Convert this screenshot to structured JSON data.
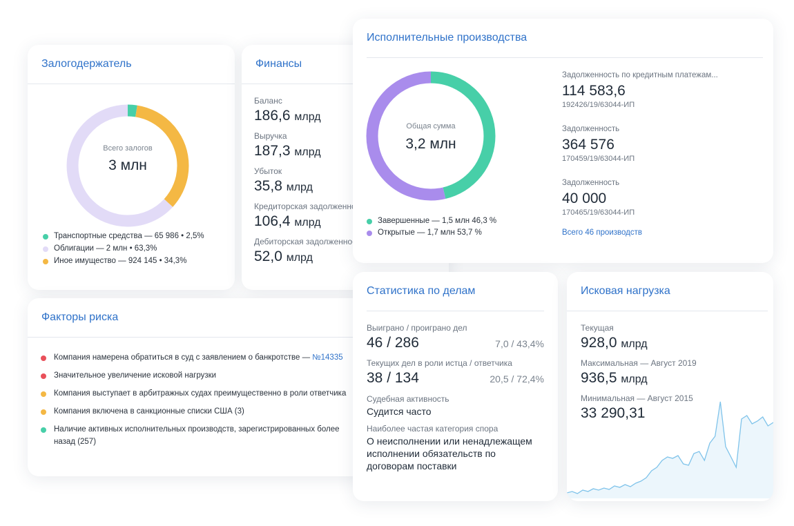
{
  "pledge": {
    "title": "Залогодержатель",
    "caption": "Всего залогов",
    "total": "3 млн",
    "segments": [
      {
        "label": "Транспортные средства — 65 986 • 2,5%",
        "value": 2.5,
        "color": "#47cfa8"
      },
      {
        "label": "Облигации —  2 млн • 63,3%",
        "value": 63.3,
        "color": "#e2dbf7"
      },
      {
        "label": "Иное имущество — 924 145 • 34,3%",
        "value": 34.3,
        "color": "#f4b844"
      }
    ]
  },
  "finance": {
    "title": "Финансы",
    "items": [
      {
        "label": "Баланс",
        "value": "186,6",
        "unit": "млрд"
      },
      {
        "label": "Выручка",
        "value": "187,3",
        "unit": "млрд"
      },
      {
        "label": "Убыток",
        "value": "35,8",
        "unit": "млрд"
      },
      {
        "label": "Кредиторская задолженность",
        "value": "106,4",
        "unit": "млрд"
      },
      {
        "label": "Дебиторская задолженность",
        "value": "52,0",
        "unit": "млрд"
      }
    ]
  },
  "risk": {
    "title": "Факторы риска",
    "items": [
      {
        "text": "Компания намерена обратиться в суд с заявлением о банкротстве — ",
        "link": "№14335",
        "color": "#e9505a"
      },
      {
        "text": "Значительное увеличение исковой нагрузки",
        "color": "#e9505a"
      },
      {
        "text": "Компания выступает в арбитражных судах преимущественно в роли ответчика",
        "color": "#f4b844"
      },
      {
        "text": "Компания включена в санкционные списки США (3)",
        "color": "#f4b844"
      },
      {
        "text": "Наличие активных исполнительных производств, зарегистрированных более",
        "text2": "назад (257)",
        "color": "#47cfa8"
      }
    ]
  },
  "enforcement": {
    "title": "Исполнительные производства",
    "caption": "Общая сумма",
    "total": "3,2 млн",
    "segments": [
      {
        "label": "Завершенные — 1,5 млн 46,3 %",
        "value": 46.3,
        "color": "#47cfa8"
      },
      {
        "label": "Открытые — 1,7 млн 53,7 %",
        "value": 53.7,
        "color": "#a98cec"
      }
    ],
    "items": [
      {
        "label": "Задолженность по кредитным платежам...",
        "value": "114 583,6",
        "case": "192426/19/63044-ИП"
      },
      {
        "label": "Задолженность",
        "value": "364 576",
        "case": "170459/19/63044-ИП"
      },
      {
        "label": "Задолженность",
        "value": "40 000",
        "case": "170465/19/63044-ИП"
      }
    ],
    "link": "Всего 46 производств"
  },
  "cases": {
    "title": "Статистика по делам",
    "rows": [
      {
        "label": "Выиграно / проиграно дел",
        "value": "46 / 286",
        "extra": "7,0 / 43,4%"
      },
      {
        "label": "Текущих дел в роли истца / ответчика",
        "value": "38 / 134",
        "extra": "20,5 / 72,4%"
      },
      {
        "label": "Судебная активность",
        "value": "Судится часто"
      },
      {
        "label": "Наиболее частая категория спора",
        "value": "О неисполнении или ненадлежащем исполнении обязательств по договорам поставки"
      }
    ]
  },
  "claims": {
    "title": "Исковая нагрузка",
    "items": [
      {
        "label": "Текущая",
        "value": "928,0",
        "unit": "млрд"
      },
      {
        "label": "Максимальная — Август 2019",
        "value": "936,5",
        "unit": "млрд"
      },
      {
        "label": "Минимальная — Август 2015",
        "value": "33 290,31"
      }
    ],
    "sparkline": {
      "type": "area",
      "color": "#7fc3ea",
      "ylim": [
        0,
        150
      ],
      "values": [
        8,
        10,
        7,
        12,
        10,
        14,
        12,
        15,
        13,
        18,
        16,
        20,
        17,
        22,
        25,
        30,
        40,
        45,
        55,
        60,
        58,
        62,
        50,
        48,
        65,
        68,
        55,
        80,
        90,
        140,
        75,
        60,
        45,
        115,
        120,
        108,
        112,
        118,
        105,
        110
      ]
    }
  }
}
